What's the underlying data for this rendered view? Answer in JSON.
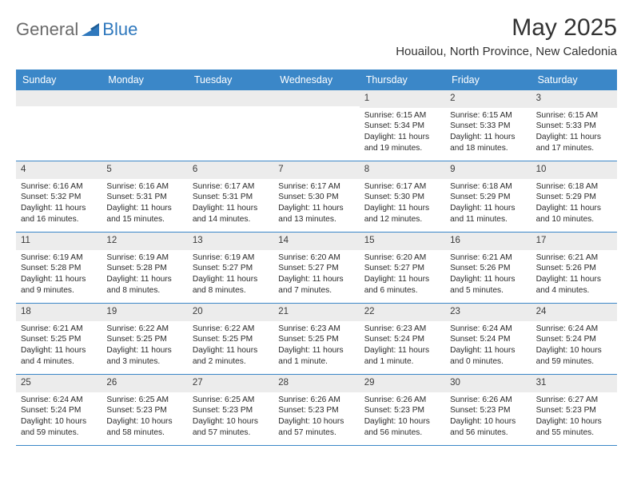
{
  "brand": {
    "general": "General",
    "blue": "Blue"
  },
  "title": "May 2025",
  "location": "Houailou, North Province, New Caledonia",
  "header_bg": "#3b87c8",
  "daynum_bg": "#ececec",
  "text_color": "#2a2a2a",
  "days": [
    "Sunday",
    "Monday",
    "Tuesday",
    "Wednesday",
    "Thursday",
    "Friday",
    "Saturday"
  ],
  "weeks": [
    [
      {
        "n": "",
        "sr": "",
        "ss": "",
        "dl": ""
      },
      {
        "n": "",
        "sr": "",
        "ss": "",
        "dl": ""
      },
      {
        "n": "",
        "sr": "",
        "ss": "",
        "dl": ""
      },
      {
        "n": "",
        "sr": "",
        "ss": "",
        "dl": ""
      },
      {
        "n": "1",
        "sr": "Sunrise: 6:15 AM",
        "ss": "Sunset: 5:34 PM",
        "dl": "Daylight: 11 hours and 19 minutes."
      },
      {
        "n": "2",
        "sr": "Sunrise: 6:15 AM",
        "ss": "Sunset: 5:33 PM",
        "dl": "Daylight: 11 hours and 18 minutes."
      },
      {
        "n": "3",
        "sr": "Sunrise: 6:15 AM",
        "ss": "Sunset: 5:33 PM",
        "dl": "Daylight: 11 hours and 17 minutes."
      }
    ],
    [
      {
        "n": "4",
        "sr": "Sunrise: 6:16 AM",
        "ss": "Sunset: 5:32 PM",
        "dl": "Daylight: 11 hours and 16 minutes."
      },
      {
        "n": "5",
        "sr": "Sunrise: 6:16 AM",
        "ss": "Sunset: 5:31 PM",
        "dl": "Daylight: 11 hours and 15 minutes."
      },
      {
        "n": "6",
        "sr": "Sunrise: 6:17 AM",
        "ss": "Sunset: 5:31 PM",
        "dl": "Daylight: 11 hours and 14 minutes."
      },
      {
        "n": "7",
        "sr": "Sunrise: 6:17 AM",
        "ss": "Sunset: 5:30 PM",
        "dl": "Daylight: 11 hours and 13 minutes."
      },
      {
        "n": "8",
        "sr": "Sunrise: 6:17 AM",
        "ss": "Sunset: 5:30 PM",
        "dl": "Daylight: 11 hours and 12 minutes."
      },
      {
        "n": "9",
        "sr": "Sunrise: 6:18 AM",
        "ss": "Sunset: 5:29 PM",
        "dl": "Daylight: 11 hours and 11 minutes."
      },
      {
        "n": "10",
        "sr": "Sunrise: 6:18 AM",
        "ss": "Sunset: 5:29 PM",
        "dl": "Daylight: 11 hours and 10 minutes."
      }
    ],
    [
      {
        "n": "11",
        "sr": "Sunrise: 6:19 AM",
        "ss": "Sunset: 5:28 PM",
        "dl": "Daylight: 11 hours and 9 minutes."
      },
      {
        "n": "12",
        "sr": "Sunrise: 6:19 AM",
        "ss": "Sunset: 5:28 PM",
        "dl": "Daylight: 11 hours and 8 minutes."
      },
      {
        "n": "13",
        "sr": "Sunrise: 6:19 AM",
        "ss": "Sunset: 5:27 PM",
        "dl": "Daylight: 11 hours and 8 minutes."
      },
      {
        "n": "14",
        "sr": "Sunrise: 6:20 AM",
        "ss": "Sunset: 5:27 PM",
        "dl": "Daylight: 11 hours and 7 minutes."
      },
      {
        "n": "15",
        "sr": "Sunrise: 6:20 AM",
        "ss": "Sunset: 5:27 PM",
        "dl": "Daylight: 11 hours and 6 minutes."
      },
      {
        "n": "16",
        "sr": "Sunrise: 6:21 AM",
        "ss": "Sunset: 5:26 PM",
        "dl": "Daylight: 11 hours and 5 minutes."
      },
      {
        "n": "17",
        "sr": "Sunrise: 6:21 AM",
        "ss": "Sunset: 5:26 PM",
        "dl": "Daylight: 11 hours and 4 minutes."
      }
    ],
    [
      {
        "n": "18",
        "sr": "Sunrise: 6:21 AM",
        "ss": "Sunset: 5:25 PM",
        "dl": "Daylight: 11 hours and 4 minutes."
      },
      {
        "n": "19",
        "sr": "Sunrise: 6:22 AM",
        "ss": "Sunset: 5:25 PM",
        "dl": "Daylight: 11 hours and 3 minutes."
      },
      {
        "n": "20",
        "sr": "Sunrise: 6:22 AM",
        "ss": "Sunset: 5:25 PM",
        "dl": "Daylight: 11 hours and 2 minutes."
      },
      {
        "n": "21",
        "sr": "Sunrise: 6:23 AM",
        "ss": "Sunset: 5:25 PM",
        "dl": "Daylight: 11 hours and 1 minute."
      },
      {
        "n": "22",
        "sr": "Sunrise: 6:23 AM",
        "ss": "Sunset: 5:24 PM",
        "dl": "Daylight: 11 hours and 1 minute."
      },
      {
        "n": "23",
        "sr": "Sunrise: 6:24 AM",
        "ss": "Sunset: 5:24 PM",
        "dl": "Daylight: 11 hours and 0 minutes."
      },
      {
        "n": "24",
        "sr": "Sunrise: 6:24 AM",
        "ss": "Sunset: 5:24 PM",
        "dl": "Daylight: 10 hours and 59 minutes."
      }
    ],
    [
      {
        "n": "25",
        "sr": "Sunrise: 6:24 AM",
        "ss": "Sunset: 5:24 PM",
        "dl": "Daylight: 10 hours and 59 minutes."
      },
      {
        "n": "26",
        "sr": "Sunrise: 6:25 AM",
        "ss": "Sunset: 5:23 PM",
        "dl": "Daylight: 10 hours and 58 minutes."
      },
      {
        "n": "27",
        "sr": "Sunrise: 6:25 AM",
        "ss": "Sunset: 5:23 PM",
        "dl": "Daylight: 10 hours and 57 minutes."
      },
      {
        "n": "28",
        "sr": "Sunrise: 6:26 AM",
        "ss": "Sunset: 5:23 PM",
        "dl": "Daylight: 10 hours and 57 minutes."
      },
      {
        "n": "29",
        "sr": "Sunrise: 6:26 AM",
        "ss": "Sunset: 5:23 PM",
        "dl": "Daylight: 10 hours and 56 minutes."
      },
      {
        "n": "30",
        "sr": "Sunrise: 6:26 AM",
        "ss": "Sunset: 5:23 PM",
        "dl": "Daylight: 10 hours and 56 minutes."
      },
      {
        "n": "31",
        "sr": "Sunrise: 6:27 AM",
        "ss": "Sunset: 5:23 PM",
        "dl": "Daylight: 10 hours and 55 minutes."
      }
    ]
  ]
}
